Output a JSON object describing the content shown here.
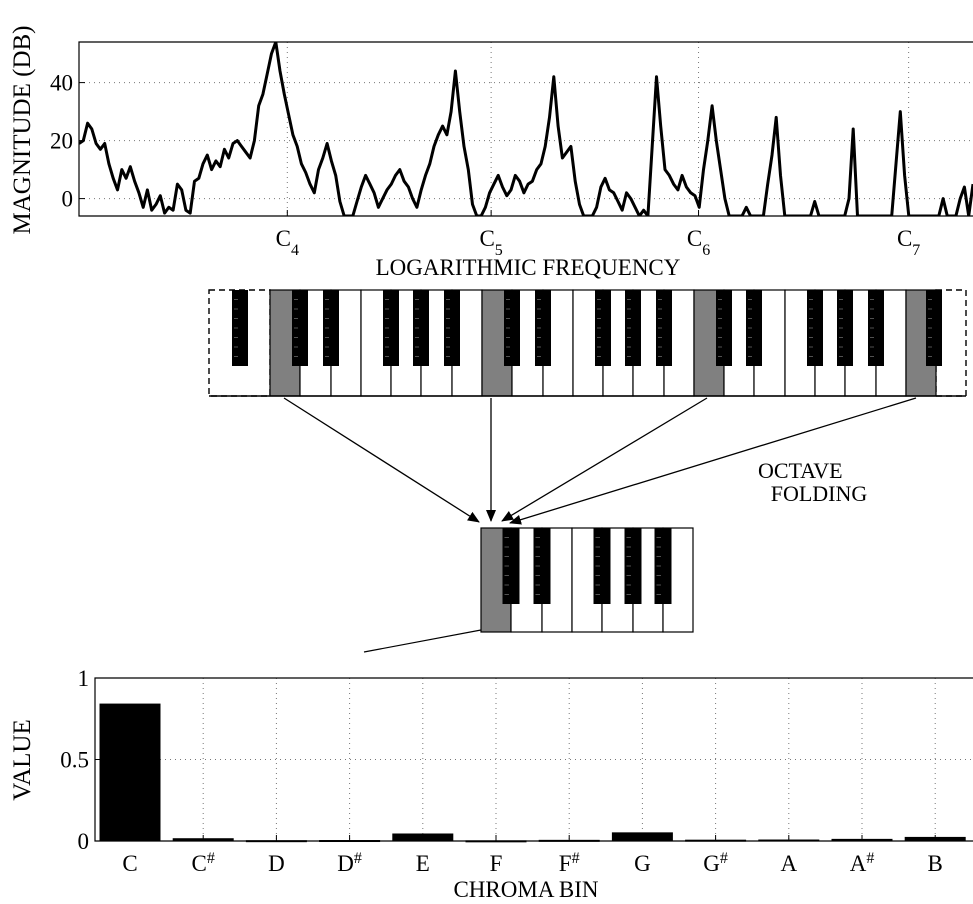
{
  "chart_data": [
    {
      "type": "line",
      "ylabel": "MAGNITUDE (DB)",
      "xlabel": "LOGARITHMIC FREQUENCY",
      "ylim": [
        -6,
        54
      ],
      "yticks": [
        0,
        20,
        40
      ],
      "xticks": [
        {
          "note": "C",
          "octave": "4"
        },
        {
          "note": "C",
          "octave": "5"
        },
        {
          "note": "C",
          "octave": "6"
        },
        {
          "note": "C",
          "octave": "7"
        }
      ],
      "grid": true,
      "series": [
        {
          "points": [
            [
              0,
              19
            ],
            [
              1,
              20
            ],
            [
              2,
              26
            ],
            [
              3,
              24
            ],
            [
              4,
              19
            ],
            [
              5,
              17
            ],
            [
              6,
              19
            ],
            [
              7,
              12
            ],
            [
              8,
              7
            ],
            [
              9,
              3
            ],
            [
              10,
              10
            ],
            [
              11,
              7
            ],
            [
              12,
              11
            ],
            [
              13,
              6
            ],
            [
              14,
              2
            ],
            [
              15,
              -3
            ],
            [
              16,
              3
            ],
            [
              17,
              -4
            ],
            [
              18,
              -2
            ],
            [
              19,
              1
            ],
            [
              20,
              -5
            ],
            [
              21,
              -3
            ],
            [
              22,
              -4
            ],
            [
              23,
              5
            ],
            [
              24,
              3
            ],
            [
              25,
              -4
            ],
            [
              26,
              -5
            ],
            [
              27,
              6
            ],
            [
              28,
              7
            ],
            [
              29,
              12
            ],
            [
              30,
              15
            ],
            [
              31,
              10
            ],
            [
              32,
              13
            ],
            [
              33,
              11
            ],
            [
              34,
              17
            ],
            [
              35,
              14
            ],
            [
              36,
              19
            ],
            [
              37,
              20
            ],
            [
              38,
              18
            ],
            [
              39,
              16
            ],
            [
              40,
              14
            ],
            [
              41,
              20
            ],
            [
              42,
              32
            ],
            [
              43,
              36
            ],
            [
              44,
              43
            ],
            [
              45,
              50
            ],
            [
              46,
              54
            ],
            [
              47,
              44
            ],
            [
              48,
              36
            ],
            [
              49,
              29
            ],
            [
              50,
              22
            ],
            [
              51,
              18
            ],
            [
              52,
              12
            ],
            [
              53,
              9
            ],
            [
              54,
              5
            ],
            [
              55,
              2
            ],
            [
              56,
              10
            ],
            [
              57,
              14
            ],
            [
              58,
              19
            ],
            [
              59,
              13
            ],
            [
              60,
              8
            ],
            [
              61,
              -1
            ],
            [
              62,
              -6
            ],
            [
              63,
              -6
            ],
            [
              64,
              -6
            ],
            [
              65,
              -1
            ],
            [
              66,
              4
            ],
            [
              67,
              8
            ],
            [
              68,
              5
            ],
            [
              69,
              2
            ],
            [
              70,
              -3
            ],
            [
              71,
              0
            ],
            [
              72,
              3
            ],
            [
              73,
              5
            ],
            [
              74,
              8
            ],
            [
              75,
              10
            ],
            [
              76,
              6
            ],
            [
              77,
              4
            ],
            [
              78,
              0
            ],
            [
              79,
              -3
            ],
            [
              80,
              3
            ],
            [
              81,
              8
            ],
            [
              82,
              12
            ],
            [
              83,
              18
            ],
            [
              84,
              22
            ],
            [
              85,
              25
            ],
            [
              86,
              22
            ],
            [
              87,
              30
            ],
            [
              88,
              44
            ],
            [
              89,
              30
            ],
            [
              90,
              18
            ],
            [
              91,
              10
            ],
            [
              92,
              -2
            ],
            [
              93,
              -6
            ],
            [
              94,
              -6
            ],
            [
              95,
              -3
            ],
            [
              96,
              2
            ],
            [
              97,
              5
            ],
            [
              98,
              8
            ],
            [
              99,
              4
            ],
            [
              100,
              1
            ],
            [
              101,
              3
            ],
            [
              102,
              8
            ],
            [
              103,
              6
            ],
            [
              104,
              2
            ],
            [
              105,
              5
            ],
            [
              106,
              6
            ],
            [
              107,
              10
            ],
            [
              108,
              12
            ],
            [
              109,
              18
            ],
            [
              110,
              28
            ],
            [
              111,
              42
            ],
            [
              112,
              25
            ],
            [
              113,
              14
            ],
            [
              114,
              16
            ],
            [
              115,
              18
            ],
            [
              116,
              6
            ],
            [
              117,
              -2
            ],
            [
              118,
              -6
            ],
            [
              119,
              -6
            ],
            [
              120,
              -6
            ],
            [
              121,
              -3
            ],
            [
              122,
              4
            ],
            [
              123,
              7
            ],
            [
              124,
              3
            ],
            [
              125,
              2
            ],
            [
              126,
              -1
            ],
            [
              127,
              -4
            ],
            [
              128,
              2
            ],
            [
              129,
              0
            ],
            [
              130,
              -3
            ],
            [
              131,
              -6
            ],
            [
              132,
              -4
            ],
            [
              133,
              -6
            ],
            [
              134,
              18
            ],
            [
              135,
              42
            ],
            [
              136,
              25
            ],
            [
              137,
              10
            ],
            [
              138,
              8
            ],
            [
              139,
              5
            ],
            [
              140,
              3
            ],
            [
              141,
              8
            ],
            [
              142,
              4
            ],
            [
              143,
              2
            ],
            [
              144,
              1
            ],
            [
              145,
              -3
            ],
            [
              146,
              10
            ],
            [
              147,
              20
            ],
            [
              148,
              32
            ],
            [
              149,
              20
            ],
            [
              150,
              10
            ],
            [
              151,
              0
            ],
            [
              152,
              -6
            ],
            [
              153,
              -6
            ],
            [
              154,
              -6
            ],
            [
              155,
              -6
            ],
            [
              156,
              -3
            ],
            [
              157,
              -6
            ],
            [
              158,
              -6
            ],
            [
              159,
              -6
            ],
            [
              160,
              -6
            ],
            [
              161,
              5
            ],
            [
              162,
              15
            ],
            [
              163,
              28
            ],
            [
              164,
              8
            ],
            [
              165,
              -6
            ],
            [
              166,
              -6
            ],
            [
              167,
              -6
            ],
            [
              168,
              -6
            ],
            [
              169,
              -6
            ],
            [
              170,
              -6
            ],
            [
              171,
              -6
            ],
            [
              172,
              -1
            ],
            [
              173,
              -6
            ],
            [
              174,
              -6
            ],
            [
              175,
              -6
            ],
            [
              176,
              -6
            ],
            [
              177,
              -6
            ],
            [
              178,
              -6
            ],
            [
              179,
              -6
            ],
            [
              180,
              0
            ],
            [
              181,
              24
            ],
            [
              182,
              -6
            ],
            [
              183,
              -6
            ],
            [
              184,
              -6
            ],
            [
              185,
              -6
            ],
            [
              186,
              -6
            ],
            [
              187,
              -6
            ],
            [
              188,
              -6
            ],
            [
              189,
              -6
            ],
            [
              190,
              -6
            ],
            [
              191,
              12
            ],
            [
              192,
              30
            ],
            [
              193,
              8
            ],
            [
              194,
              -6
            ],
            [
              195,
              -6
            ],
            [
              196,
              -6
            ],
            [
              197,
              -6
            ],
            [
              198,
              -6
            ],
            [
              199,
              -6
            ],
            [
              200,
              -6
            ],
            [
              201,
              -6
            ],
            [
              202,
              0
            ],
            [
              203,
              -6
            ],
            [
              204,
              -6
            ],
            [
              205,
              -6
            ],
            [
              206,
              0
            ],
            [
              207,
              4
            ],
            [
              208,
              -6
            ],
            [
              209,
              5
            ]
          ]
        }
      ]
    },
    {
      "type": "bar",
      "ylabel": "VALUE",
      "xlabel": "CHROMA BIN",
      "ylim": [
        0,
        1
      ],
      "yticks": [
        "0",
        "0.5",
        "1"
      ],
      "grid": true,
      "categories": [
        {
          "name": "C",
          "sharp": ""
        },
        {
          "name": "C",
          "sharp": "#"
        },
        {
          "name": "D",
          "sharp": ""
        },
        {
          "name": "D",
          "sharp": "#"
        },
        {
          "name": "E",
          "sharp": ""
        },
        {
          "name": "F",
          "sharp": ""
        },
        {
          "name": "F",
          "sharp": "#"
        },
        {
          "name": "G",
          "sharp": ""
        },
        {
          "name": "G",
          "sharp": "#"
        },
        {
          "name": "A",
          "sharp": ""
        },
        {
          "name": "A",
          "sharp": "#"
        },
        {
          "name": "B",
          "sharp": ""
        }
      ],
      "values": [
        0.84,
        0.014,
        0.002,
        0.003,
        0.043,
        0.001,
        0.004,
        0.05,
        0.005,
        0.006,
        0.01,
        0.022
      ]
    }
  ],
  "diagram": {
    "annotation": [
      "OCTAVE",
      "FOLDING"
    ]
  },
  "colors": {
    "highlight_key": "#808080",
    "black_key": "#000000",
    "bar_fill": "#000000",
    "grid": "#777777"
  }
}
